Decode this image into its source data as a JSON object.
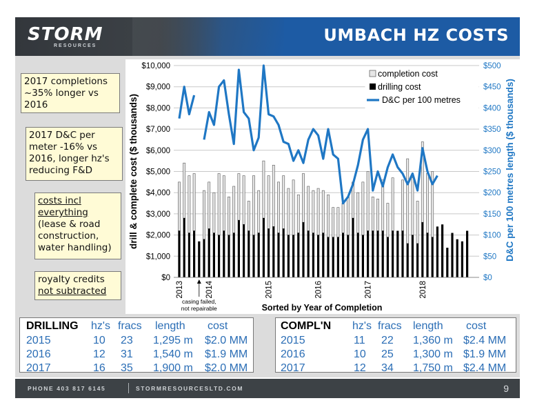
{
  "header": {
    "logo": "STORM",
    "logo_sub": "RESOURCES",
    "title": "UMBACH HZ COSTS"
  },
  "callouts": {
    "c1": [
      "2017 completions",
      "~35% longer vs",
      "2016"
    ],
    "c2": [
      "2017 D&C per",
      "meter -16% vs",
      "2016, longer hz's",
      "reducing F&D"
    ],
    "c3": [
      "costs incl",
      "everything",
      "(lease & road",
      "construction,",
      "water handling)"
    ],
    "c4": [
      "royalty credits",
      "not subtracted"
    ]
  },
  "chart_data": {
    "type": "bar",
    "xlabel": "Sorted by Year of Completion",
    "ylabel_left": "drill & complete cost ($ thousands)",
    "ylabel_right": "D&C per 100 metres length ($ thousands)",
    "ylim_left": [
      0,
      10000
    ],
    "ylim_right": [
      0,
      500
    ],
    "yticks_left": [
      "$0",
      "$1,000",
      "$2,000",
      "$3,000",
      "$4,000",
      "$5,000",
      "$6,000",
      "$7,000",
      "$8,000",
      "$9,000",
      "$10,000"
    ],
    "yticks_right": [
      "$0",
      "$50",
      "$100",
      "$150",
      "$200",
      "$250",
      "$300",
      "$350",
      "$400",
      "$450",
      "$500"
    ],
    "year_labels": [
      "2013",
      "2014",
      "2015",
      "2016",
      "2017",
      "2018"
    ],
    "year_label_positions": [
      0,
      6,
      18,
      28,
      38,
      49
    ],
    "annotation": "casing failed,\nnot repairable",
    "annotation_index": 4,
    "legend": [
      "completion cost",
      "drilling cost",
      "D&C per 100 metres"
    ],
    "grid": true,
    "series": [
      {
        "name": "drilling cost",
        "values": [
          2200,
          2800,
          2100,
          2200,
          1700,
          1800,
          2300,
          2100,
          2000,
          2200,
          2000,
          2100,
          2700,
          2500,
          2200,
          2000,
          2100,
          2800,
          2300,
          2400,
          2100,
          2300,
          2000,
          2000,
          2100,
          2600,
          2200,
          2100,
          2000,
          2100,
          1900,
          1900,
          1900,
          2100,
          2000,
          2800,
          2100,
          2000,
          2200,
          2200,
          2200,
          2200,
          1900,
          2200,
          2200,
          2200,
          1600,
          2000,
          1600,
          2600,
          2100,
          1900,
          2400,
          2500,
          1400,
          2100,
          1800,
          1700,
          2200
        ]
      },
      {
        "name": "total drill & complete cost",
        "values": [
          4500,
          5400,
          4800,
          4900,
          1700,
          4100,
          4500,
          4000,
          4900,
          4800,
          3800,
          4300,
          4900,
          4800,
          3600,
          4800,
          4100,
          5500,
          4800,
          5300,
          4500,
          4800,
          4200,
          4600,
          3900,
          4900,
          4300,
          4100,
          4200,
          4100,
          3900,
          3300,
          3300,
          3500,
          3800,
          4500,
          4000,
          4500,
          5000,
          3800,
          3700,
          4600,
          3500,
          4700,
          2200,
          4600,
          5600,
          4700,
          3600,
          6400,
          4900,
          5000,
          2400,
          2500,
          1400,
          2100,
          1800,
          1700,
          2200
        ]
      },
      {
        "name": "D&C per 100 metres",
        "values": [
          375,
          450,
          385,
          430,
          null,
          325,
          390,
          360,
          450,
          465,
          385,
          315,
          490,
          390,
          375,
          300,
          330,
          500,
          385,
          380,
          360,
          320,
          315,
          275,
          300,
          270,
          325,
          350,
          335,
          280,
          350,
          290,
          280,
          175,
          190,
          220,
          265,
          325,
          350,
          205,
          250,
          215,
          260,
          290,
          260,
          245,
          220,
          245,
          205,
          305,
          250,
          220,
          240,
          null,
          null,
          null,
          null,
          null,
          null
        ]
      }
    ]
  },
  "drilling_table": {
    "headers": [
      "DRILLING",
      "hz's",
      "fracs",
      "length",
      "cost"
    ],
    "rows": [
      [
        "2015",
        "10",
        "23",
        "1,295 m",
        "$2.0 MM"
      ],
      [
        "2016",
        "12",
        "31",
        "1,540 m",
        "$1.9 MM"
      ],
      [
        "2017",
        "16",
        "35",
        "1,900 m",
        "$2.0 MM"
      ]
    ]
  },
  "completion_table": {
    "headers": [
      "COMPL'N",
      "hz's",
      "fracs",
      "length",
      "cost"
    ],
    "rows": [
      [
        "2015",
        "11",
        "22",
        "1,360 m",
        "$2.4 MM"
      ],
      [
        "2016",
        "10",
        "25",
        "1,300 m",
        "$1.9 MM"
      ],
      [
        "2017",
        "12",
        "34",
        "1,750 m",
        "$2.4 MM"
      ]
    ]
  },
  "footer": {
    "phone": "PHONE 403 817 6145",
    "site": "STORMRESOURCESLTD.COM",
    "page": "9"
  },
  "colors": {
    "header_blue": "#1d5ba4",
    "line_blue": "#1f77c4",
    "callout_bg": "#fffbd6",
    "footer": "#3d4246"
  }
}
